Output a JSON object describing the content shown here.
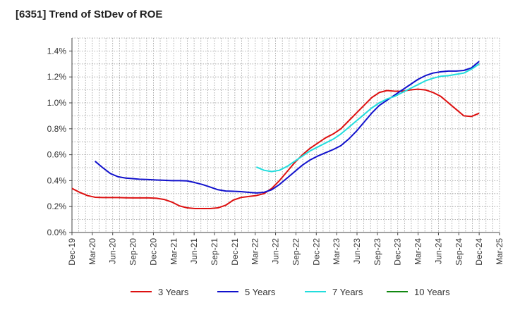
{
  "chart_data": {
    "type": "line",
    "title": "[6351]  Trend of StDev of ROE",
    "x_labels": [
      "Dec-19",
      "Mar-20",
      "Jun-20",
      "Sep-20",
      "Dec-20",
      "Mar-21",
      "Jun-21",
      "Sep-21",
      "Dec-21",
      "Mar-22",
      "Jun-22",
      "Sep-22",
      "Dec-22",
      "Mar-23",
      "Jun-23",
      "Sep-23",
      "Dec-23",
      "Mar-24",
      "Jun-24",
      "Sep-24",
      "Dec-24",
      "Mar-25"
    ],
    "y_ticks": [
      "0.0%",
      "0.2%",
      "0.4%",
      "0.6%",
      "0.8%",
      "1.0%",
      "1.2%",
      "1.4%"
    ],
    "ylim": [
      0,
      1.5
    ],
    "y_unit": "%",
    "grid": true,
    "legend_position": "bottom",
    "series": [
      {
        "name": "3 Years",
        "color": "#dd1111",
        "points": [
          [
            0,
            0.34
          ],
          [
            1,
            0.31
          ],
          [
            2,
            0.285
          ],
          [
            3,
            0.272
          ],
          [
            4,
            0.27
          ],
          [
            5,
            0.27
          ],
          [
            6,
            0.27
          ],
          [
            7,
            0.268
          ],
          [
            8,
            0.267
          ],
          [
            9,
            0.267
          ],
          [
            10,
            0.267
          ],
          [
            11,
            0.264
          ],
          [
            12,
            0.255
          ],
          [
            13,
            0.235
          ],
          [
            14,
            0.205
          ],
          [
            15,
            0.19
          ],
          [
            16,
            0.185
          ],
          [
            17,
            0.185
          ],
          [
            18,
            0.185
          ],
          [
            19,
            0.19
          ],
          [
            20,
            0.21
          ],
          [
            21,
            0.25
          ],
          [
            22,
            0.27
          ],
          [
            23,
            0.278
          ],
          [
            24,
            0.285
          ],
          [
            25,
            0.3
          ],
          [
            26,
            0.34
          ],
          [
            27,
            0.4
          ],
          [
            28,
            0.47
          ],
          [
            29,
            0.54
          ],
          [
            30,
            0.6
          ],
          [
            31,
            0.65
          ],
          [
            32,
            0.69
          ],
          [
            33,
            0.73
          ],
          [
            34,
            0.76
          ],
          [
            35,
            0.8
          ],
          [
            36,
            0.86
          ],
          [
            37,
            0.92
          ],
          [
            38,
            0.98
          ],
          [
            39,
            1.04
          ],
          [
            40,
            1.08
          ],
          [
            41,
            1.095
          ],
          [
            42,
            1.09
          ],
          [
            43,
            1.09
          ],
          [
            44,
            1.1
          ],
          [
            45,
            1.105
          ],
          [
            46,
            1.1
          ],
          [
            47,
            1.08
          ],
          [
            48,
            1.05
          ],
          [
            49,
            1.0
          ],
          [
            50,
            0.95
          ],
          [
            51,
            0.9
          ],
          [
            52,
            0.895
          ],
          [
            53,
            0.92
          ]
        ]
      },
      {
        "name": "5 Years",
        "color": "#1111cc",
        "points": [
          [
            3,
            0.55
          ],
          [
            4,
            0.5
          ],
          [
            5,
            0.455
          ],
          [
            6,
            0.43
          ],
          [
            7,
            0.42
          ],
          [
            8,
            0.415
          ],
          [
            9,
            0.41
          ],
          [
            10,
            0.408
          ],
          [
            11,
            0.405
          ],
          [
            12,
            0.403
          ],
          [
            13,
            0.4
          ],
          [
            14,
            0.4
          ],
          [
            15,
            0.398
          ],
          [
            16,
            0.385
          ],
          [
            17,
            0.37
          ],
          [
            18,
            0.35
          ],
          [
            19,
            0.33
          ],
          [
            20,
            0.32
          ],
          [
            21,
            0.318
          ],
          [
            22,
            0.315
          ],
          [
            23,
            0.31
          ],
          [
            24,
            0.305
          ],
          [
            25,
            0.31
          ],
          [
            26,
            0.33
          ],
          [
            27,
            0.37
          ],
          [
            28,
            0.42
          ],
          [
            29,
            0.47
          ],
          [
            30,
            0.52
          ],
          [
            31,
            0.56
          ],
          [
            32,
            0.59
          ],
          [
            33,
            0.615
          ],
          [
            34,
            0.64
          ],
          [
            35,
            0.67
          ],
          [
            36,
            0.72
          ],
          [
            37,
            0.78
          ],
          [
            38,
            0.85
          ],
          [
            39,
            0.92
          ],
          [
            40,
            0.98
          ],
          [
            41,
            1.02
          ],
          [
            42,
            1.06
          ],
          [
            43,
            1.1
          ],
          [
            44,
            1.14
          ],
          [
            45,
            1.18
          ],
          [
            46,
            1.21
          ],
          [
            47,
            1.23
          ],
          [
            48,
            1.24
          ],
          [
            49,
            1.245
          ],
          [
            50,
            1.245
          ],
          [
            51,
            1.25
          ],
          [
            52,
            1.27
          ],
          [
            53,
            1.32
          ]
        ]
      },
      {
        "name": "7 Years",
        "color": "#22dddd",
        "points": [
          [
            24,
            0.505
          ],
          [
            25,
            0.48
          ],
          [
            26,
            0.47
          ],
          [
            27,
            0.48
          ],
          [
            28,
            0.51
          ],
          [
            29,
            0.55
          ],
          [
            30,
            0.59
          ],
          [
            31,
            0.63
          ],
          [
            32,
            0.66
          ],
          [
            33,
            0.69
          ],
          [
            34,
            0.72
          ],
          [
            35,
            0.76
          ],
          [
            36,
            0.81
          ],
          [
            37,
            0.86
          ],
          [
            38,
            0.91
          ],
          [
            39,
            0.96
          ],
          [
            40,
            1.0
          ],
          [
            41,
            1.03
          ],
          [
            42,
            1.05
          ],
          [
            43,
            1.08
          ],
          [
            44,
            1.11
          ],
          [
            45,
            1.14
          ],
          [
            46,
            1.17
          ],
          [
            47,
            1.19
          ],
          [
            48,
            1.205
          ],
          [
            49,
            1.21
          ],
          [
            50,
            1.22
          ],
          [
            51,
            1.23
          ],
          [
            52,
            1.26
          ],
          [
            53,
            1.3
          ]
        ]
      },
      {
        "name": "10 Years",
        "color": "#118811",
        "points": []
      }
    ]
  }
}
